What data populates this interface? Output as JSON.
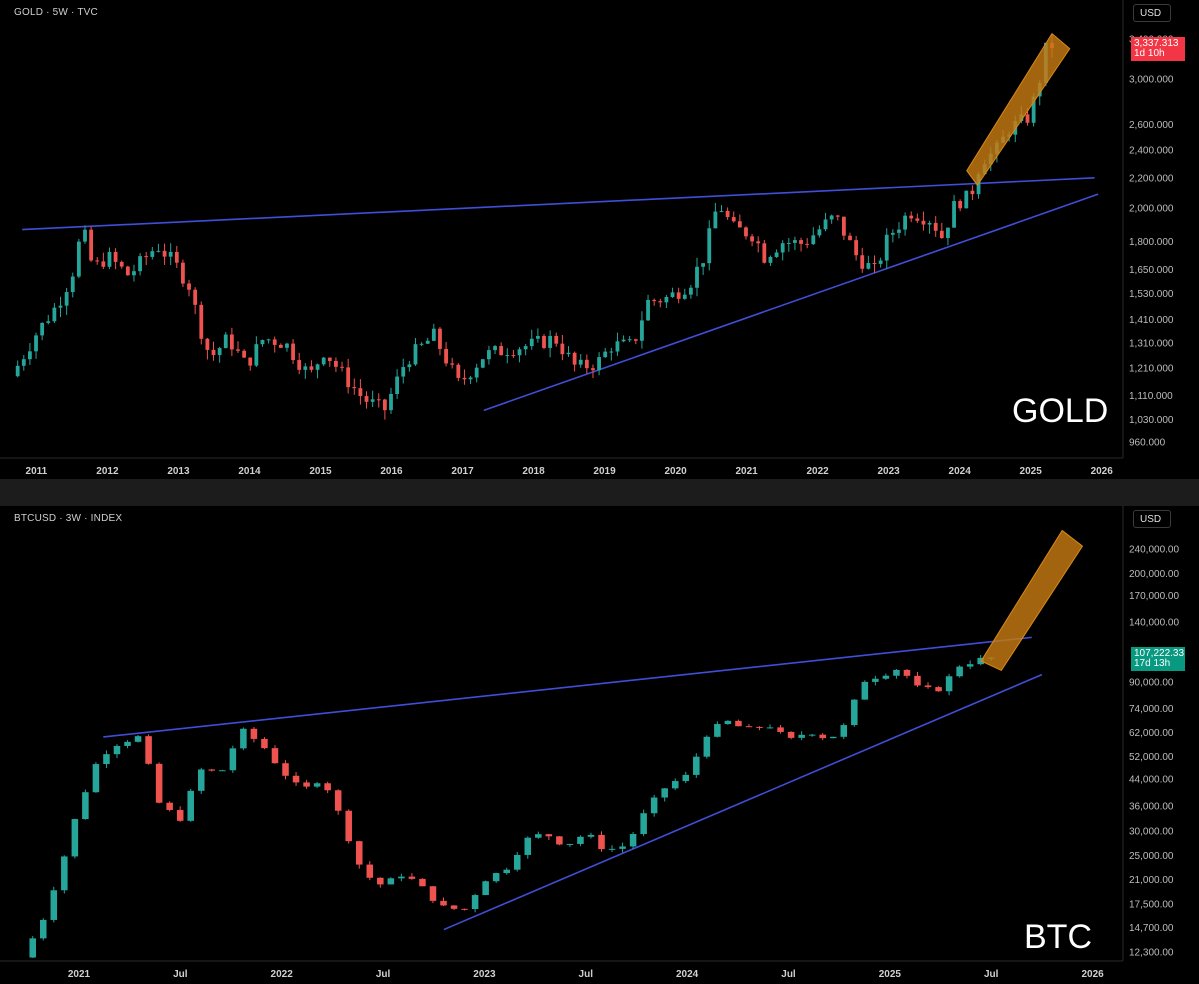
{
  "charts": [
    {
      "symbol": "GOLD · 5W · TVC",
      "currency": "USD",
      "big_label": "GOLD",
      "price_tag": {
        "price": "3,337.313",
        "countdown": "1d 10h",
        "color": "#f23645"
      },
      "up_color": "#26a69a",
      "down_color": "#ef5350"
    },
    {
      "symbol": "BTCUSD · 3W · INDEX",
      "currency": "USD",
      "big_label": "BTC",
      "price_tag": {
        "price": "107,222.33",
        "countdown": "17d 13h",
        "color": "#089981"
      },
      "up_color": "#26a69a",
      "down_color": "#ef5350"
    }
  ],
  "chart_data": [
    {
      "type": "candlestick",
      "title": "GOLD · 5W · TVC",
      "scale": "log",
      "ylim": [
        930,
        3500
      ],
      "xlim": [
        2010.6,
        2026.3
      ],
      "y_ticks": [
        {
          "v": 3400,
          "label": "3,400.000"
        },
        {
          "v": 3000,
          "label": "3,000.000"
        },
        {
          "v": 2600,
          "label": "2,600.000"
        },
        {
          "v": 2400,
          "label": "2,400.000"
        },
        {
          "v": 2200,
          "label": "2,200.000"
        },
        {
          "v": 2000,
          "label": "2,000.000"
        },
        {
          "v": 1800,
          "label": "1,800.000"
        },
        {
          "v": 1650,
          "label": "1,650.000"
        },
        {
          "v": 1530,
          "label": "1,530.000"
        },
        {
          "v": 1410,
          "label": "1,410.000"
        },
        {
          "v": 1310,
          "label": "1,310.000"
        },
        {
          "v": 1210,
          "label": "1,210.000"
        },
        {
          "v": 1110,
          "label": "1,110.000"
        },
        {
          "v": 1030,
          "label": "1,030.000"
        },
        {
          "v": 960,
          "label": "960.000"
        }
      ],
      "x_ticks": [
        {
          "v": 2011,
          "label": "2011"
        },
        {
          "v": 2012,
          "label": "2012"
        },
        {
          "v": 2013,
          "label": "2013"
        },
        {
          "v": 2014,
          "label": "2014"
        },
        {
          "v": 2015,
          "label": "2015"
        },
        {
          "v": 2016,
          "label": "2016"
        },
        {
          "v": 2017,
          "label": "2017"
        },
        {
          "v": 2018,
          "label": "2018"
        },
        {
          "v": 2019,
          "label": "2019"
        },
        {
          "v": 2020,
          "label": "2020"
        },
        {
          "v": 2021,
          "label": "2021"
        },
        {
          "v": 2022,
          "label": "2022"
        },
        {
          "v": 2023,
          "label": "2023"
        },
        {
          "v": 2024,
          "label": "2024"
        },
        {
          "v": 2025,
          "label": "2025"
        },
        {
          "v": 2026,
          "label": "2026"
        }
      ],
      "close_path": [
        [
          2010.65,
          1180
        ],
        [
          2011.0,
          1350
        ],
        [
          2011.3,
          1480
        ],
        [
          2011.5,
          1620
        ],
        [
          2011.65,
          1880
        ],
        [
          2011.8,
          1650
        ],
        [
          2012.0,
          1720
        ],
        [
          2012.3,
          1620
        ],
        [
          2012.7,
          1780
        ],
        [
          2012.95,
          1680
        ],
        [
          2013.15,
          1570
        ],
        [
          2013.3,
          1380
        ],
        [
          2013.45,
          1250
        ],
        [
          2013.7,
          1330
        ],
        [
          2013.95,
          1220
        ],
        [
          2014.2,
          1330
        ],
        [
          2014.5,
          1310
        ],
        [
          2014.85,
          1180
        ],
        [
          2015.05,
          1280
        ],
        [
          2015.3,
          1190
        ],
        [
          2015.6,
          1100
        ],
        [
          2015.9,
          1060
        ],
        [
          2016.2,
          1240
        ],
        [
          2016.6,
          1340
        ],
        [
          2016.95,
          1150
        ],
        [
          2017.3,
          1260
        ],
        [
          2017.7,
          1290
        ],
        [
          2017.95,
          1300
        ],
        [
          2018.3,
          1330
        ],
        [
          2018.6,
          1210
        ],
        [
          2018.9,
          1230
        ],
        [
          2019.1,
          1300
        ],
        [
          2019.4,
          1300
        ],
        [
          2019.6,
          1490
        ],
        [
          2019.9,
          1510
        ],
        [
          2020.2,
          1580
        ],
        [
          2020.4,
          1720
        ],
        [
          2020.6,
          2040
        ],
        [
          2020.8,
          1880
        ],
        [
          2021.1,
          1840
        ],
        [
          2021.25,
          1720
        ],
        [
          2021.5,
          1800
        ],
        [
          2021.8,
          1790
        ],
        [
          2022.1,
          1900
        ],
        [
          2022.25,
          1950
        ],
        [
          2022.55,
          1720
        ],
        [
          2022.8,
          1640
        ],
        [
          2023.0,
          1830
        ],
        [
          2023.3,
          1980
        ],
        [
          2023.6,
          1930
        ],
        [
          2023.75,
          1830
        ],
        [
          2023.95,
          2040
        ],
        [
          2024.15,
          2070
        ],
        [
          2024.3,
          2330
        ],
        [
          2024.5,
          2380
        ],
        [
          2024.7,
          2570
        ],
        [
          2024.95,
          2650
        ],
        [
          2025.1,
          2900
        ],
        [
          2025.2,
          3280
        ],
        [
          2025.3,
          3337
        ]
      ],
      "lines": [
        {
          "name": "resistance",
          "from": [
            2010.8,
            1870
          ],
          "to": [
            2025.9,
            2200
          ]
        },
        {
          "name": "support",
          "from": [
            2017.3,
            1060
          ],
          "to": [
            2025.95,
            2090
          ]
        }
      ],
      "highlight_channel": {
        "lower_from": [
          2024.25,
          2150
        ],
        "lower_to": [
          2025.55,
          3300
        ],
        "upper_from": [
          2024.1,
          2250
        ],
        "upper_to": [
          2025.3,
          3460
        ]
      },
      "last_price": 3337.313
    },
    {
      "type": "candlestick",
      "title": "BTCUSD · 3W · INDEX",
      "scale": "log",
      "ylim": [
        11500,
        280000
      ],
      "xlim": [
        2020.65,
        2026.15
      ],
      "y_ticks": [
        {
          "v": 240000,
          "label": "240,000.00"
        },
        {
          "v": 200000,
          "label": "200,000.00"
        },
        {
          "v": 170000,
          "label": "170,000.00"
        },
        {
          "v": 140000,
          "label": "140,000.00"
        },
        {
          "v": 90000,
          "label": "90,000.00"
        },
        {
          "v": 74000,
          "label": "74,000.00"
        },
        {
          "v": 62000,
          "label": "62,000.00"
        },
        {
          "v": 52000,
          "label": "52,000.00"
        },
        {
          "v": 44000,
          "label": "44,000.00"
        },
        {
          "v": 36000,
          "label": "36,000.00"
        },
        {
          "v": 30000,
          "label": "30,000.00"
        },
        {
          "v": 25000,
          "label": "25,000.00"
        },
        {
          "v": 21000,
          "label": "21,000.00"
        },
        {
          "v": 17500,
          "label": "17,500.00"
        },
        {
          "v": 14700,
          "label": "14,700.00"
        },
        {
          "v": 12300,
          "label": "12,300.00"
        }
      ],
      "x_ticks": [
        {
          "v": 2021.0,
          "label": "2021"
        },
        {
          "v": 2021.5,
          "label": "Jul"
        },
        {
          "v": 2022.0,
          "label": "2022"
        },
        {
          "v": 2022.5,
          "label": "Jul"
        },
        {
          "v": 2023.0,
          "label": "2023"
        },
        {
          "v": 2023.5,
          "label": "Jul"
        },
        {
          "v": 2024.0,
          "label": "2024"
        },
        {
          "v": 2024.5,
          "label": "Jul"
        },
        {
          "v": 2025.0,
          "label": "2025"
        },
        {
          "v": 2025.5,
          "label": "Jul"
        },
        {
          "v": 2026.0,
          "label": "2026"
        }
      ],
      "close_path": [
        [
          2020.72,
          11800
        ],
        [
          2020.82,
          15500
        ],
        [
          2020.92,
          24000
        ],
        [
          2021.0,
          36000
        ],
        [
          2021.1,
          52000
        ],
        [
          2021.2,
          58000
        ],
        [
          2021.3,
          60000
        ],
        [
          2021.4,
          36000
        ],
        [
          2021.5,
          33000
        ],
        [
          2021.6,
          47000
        ],
        [
          2021.7,
          46000
        ],
        [
          2021.8,
          63000
        ],
        [
          2021.9,
          57000
        ],
        [
          2022.0,
          47000
        ],
        [
          2022.1,
          40000
        ],
        [
          2022.2,
          45000
        ],
        [
          2022.3,
          32000
        ],
        [
          2022.4,
          22000
        ],
        [
          2022.5,
          20000
        ],
        [
          2022.6,
          22000
        ],
        [
          2022.7,
          19500
        ],
        [
          2022.8,
          17000
        ],
        [
          2022.9,
          16800
        ],
        [
          2023.0,
          21000
        ],
        [
          2023.1,
          22500
        ],
        [
          2023.2,
          28000
        ],
        [
          2023.3,
          29500
        ],
        [
          2023.4,
          27000
        ],
        [
          2023.5,
          29500
        ],
        [
          2023.6,
          26000
        ],
        [
          2023.7,
          27000
        ],
        [
          2023.8,
          35000
        ],
        [
          2023.9,
          42000
        ],
        [
          2024.0,
          45000
        ],
        [
          2024.1,
          62000
        ],
        [
          2024.2,
          67000
        ],
        [
          2024.3,
          63000
        ],
        [
          2024.4,
          66000
        ],
        [
          2024.5,
          58000
        ],
        [
          2024.6,
          63000
        ],
        [
          2024.7,
          59000
        ],
        [
          2024.8,
          67000
        ],
        [
          2024.85,
          90000
        ],
        [
          2024.95,
          95000
        ],
        [
          2025.05,
          100000
        ],
        [
          2025.15,
          84000
        ],
        [
          2025.25,
          86000
        ],
        [
          2025.35,
          103000
        ],
        [
          2025.45,
          106000
        ],
        [
          2025.5,
          107222
        ]
      ],
      "lines": [
        {
          "name": "resistance",
          "from": [
            2021.12,
            60000
          ],
          "to": [
            2025.7,
            125000
          ]
        },
        {
          "name": "support",
          "from": [
            2022.8,
            14500
          ],
          "to": [
            2025.75,
            95000
          ]
        }
      ],
      "highlight_channel": {
        "lower_from": [
          2025.55,
          98000
        ],
        "lower_to": [
          2025.95,
          245000
        ],
        "upper_from": [
          2025.45,
          105000
        ],
        "upper_to": [
          2025.85,
          275000
        ]
      },
      "last_price": 107222.33
    }
  ]
}
